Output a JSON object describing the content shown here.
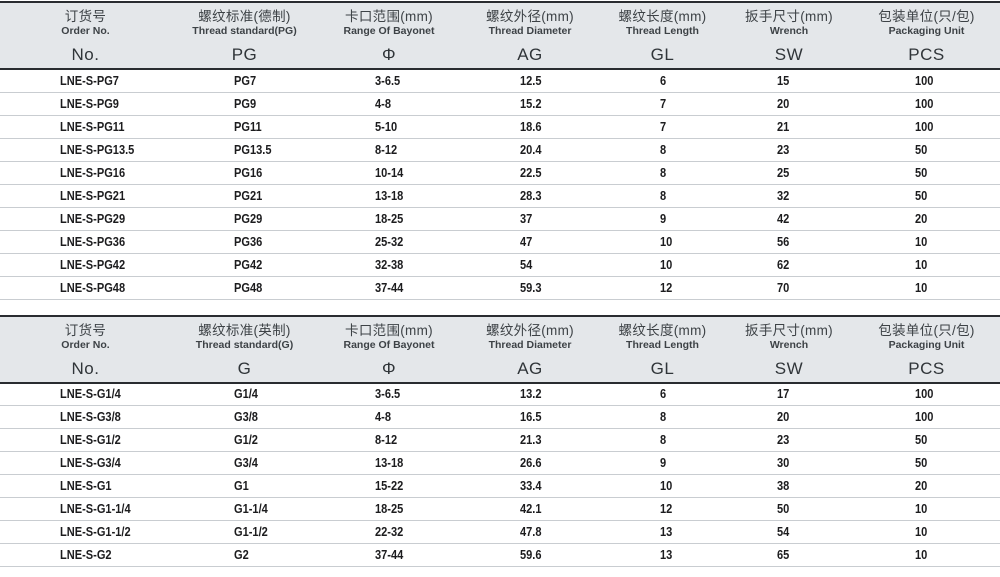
{
  "colors": {
    "header_bg": "#e4e7ea",
    "border_dark": "#292c30",
    "row_line": "#c9cdd1",
    "header_text": "#3d4246",
    "data_text": "#1c1c1e"
  },
  "tables": [
    {
      "name": "metric-pg",
      "columns": [
        {
          "cn": "订货号",
          "en": "Order No.",
          "code": "No."
        },
        {
          "cn": "螺纹标准(德制)",
          "en": "Thread standard(PG)",
          "code": "PG"
        },
        {
          "cn": "卡口范围(mm)",
          "en": "Range Of Bayonet",
          "code": "Φ"
        },
        {
          "cn": "螺纹外径(mm)",
          "en": "Thread Diameter",
          "code": "AG"
        },
        {
          "cn": "螺纹长度(mm)",
          "en": "Thread Length",
          "code": "GL"
        },
        {
          "cn": "扳手尺寸(mm)",
          "en": "Wrench",
          "code": "SW"
        },
        {
          "cn": "包装单位(只/包)",
          "en": "Packaging Unit",
          "code": "PCS"
        }
      ],
      "rows": [
        [
          "LNE-S-PG7",
          "PG7",
          "3-6.5",
          "12.5",
          "6",
          "15",
          "100"
        ],
        [
          "LNE-S-PG9",
          "PG9",
          "4-8",
          "15.2",
          "7",
          "20",
          "100"
        ],
        [
          "LNE-S-PG11",
          "PG11",
          "5-10",
          "18.6",
          "7",
          "21",
          "100"
        ],
        [
          "LNE-S-PG13.5",
          "PG13.5",
          "8-12",
          "20.4",
          "8",
          "23",
          "50"
        ],
        [
          "LNE-S-PG16",
          "PG16",
          "10-14",
          "22.5",
          "8",
          "25",
          "50"
        ],
        [
          "LNE-S-PG21",
          "PG21",
          "13-18",
          "28.3",
          "8",
          "32",
          "50"
        ],
        [
          "LNE-S-PG29",
          "PG29",
          "18-25",
          "37",
          "9",
          "42",
          "20"
        ],
        [
          "LNE-S-PG36",
          "PG36",
          "25-32",
          "47",
          "10",
          "56",
          "10"
        ],
        [
          "LNE-S-PG42",
          "PG42",
          "32-38",
          "54",
          "10",
          "62",
          "10"
        ],
        [
          "LNE-S-PG48",
          "PG48",
          "37-44",
          "59.3",
          "12",
          "70",
          "10"
        ]
      ]
    },
    {
      "name": "imperial-g",
      "columns": [
        {
          "cn": "订货号",
          "en": "Order No.",
          "code": "No."
        },
        {
          "cn": "螺纹标准(英制)",
          "en": "Thread standard(G)",
          "code": "G"
        },
        {
          "cn": "卡口范围(mm)",
          "en": "Range Of Bayonet",
          "code": "Φ"
        },
        {
          "cn": "螺纹外径(mm)",
          "en": "Thread Diameter",
          "code": "AG"
        },
        {
          "cn": "螺纹长度(mm)",
          "en": "Thread Length",
          "code": "GL"
        },
        {
          "cn": "扳手尺寸(mm)",
          "en": "Wrench",
          "code": "SW"
        },
        {
          "cn": "包装单位(只/包)",
          "en": "Packaging Unit",
          "code": "PCS"
        }
      ],
      "rows": [
        [
          "LNE-S-G1/4",
          "G1/4",
          "3-6.5",
          "13.2",
          "6",
          "17",
          "100"
        ],
        [
          "LNE-S-G3/8",
          "G3/8",
          "4-8",
          "16.5",
          "8",
          "20",
          "100"
        ],
        [
          "LNE-S-G1/2",
          "G1/2",
          "8-12",
          "21.3",
          "8",
          "23",
          "50"
        ],
        [
          "LNE-S-G3/4",
          "G3/4",
          "13-18",
          "26.6",
          "9",
          "30",
          "50"
        ],
        [
          "LNE-S-G1",
          "G1",
          "15-22",
          "33.4",
          "10",
          "38",
          "20"
        ],
        [
          "LNE-S-G1-1/4",
          "G1-1/4",
          "18-25",
          "42.1",
          "12",
          "50",
          "10"
        ],
        [
          "LNE-S-G1-1/2",
          "G1-1/2",
          "22-32",
          "47.8",
          "13",
          "54",
          "10"
        ],
        [
          "LNE-S-G2",
          "G2",
          "37-44",
          "59.6",
          "13",
          "65",
          "10"
        ]
      ]
    }
  ]
}
